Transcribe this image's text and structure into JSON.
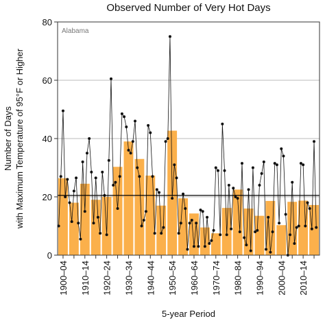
{
  "chart_data": {
    "type": "bar_line",
    "title": "Observed Number of Very Hot Days",
    "y_label": [
      "Number of Days",
      "with Maximum Temperature of 95°F or Higher"
    ],
    "x_label": "5-year Period",
    "annotation": "Alabama",
    "categories": [
      "1900–04",
      null,
      "1910–14",
      null,
      "1920–24",
      null,
      "1930–34",
      null,
      "1940–44",
      null,
      "1950–54",
      null,
      "1960–64",
      null,
      "1970–74",
      null,
      "1980–84",
      null,
      "1990–94",
      null,
      "2000–04",
      null,
      "2010–14",
      null
    ],
    "period_start": [
      1900,
      1905,
      1910,
      1915,
      1920,
      1925,
      1930,
      1935,
      1940,
      1945,
      1950,
      1955,
      1960,
      1965,
      1970,
      1975,
      1980,
      1985,
      1990,
      1995,
      2000,
      2005,
      2010,
      2015
    ],
    "values": [
      26.4,
      18,
      24.5,
      19,
      20,
      30.3,
      39,
      33,
      27.3,
      17,
      42.7,
      19.5,
      14.3,
      9.5,
      7.5,
      16.2,
      22.5,
      16,
      13.5,
      18.6,
      10.3,
      18.3,
      18.7,
      17.2
    ],
    "color": "#fbb04b",
    "annual": {
      "x": [
        1900,
        1901,
        1902,
        1903,
        1904,
        1905,
        1906,
        1907,
        1908,
        1909,
        1910,
        1911,
        1912,
        1913,
        1914,
        1915,
        1916,
        1917,
        1918,
        1919,
        1920,
        1921,
        1922,
        1923,
        1924,
        1925,
        1926,
        1927,
        1928,
        1929,
        1930,
        1931,
        1932,
        1933,
        1934,
        1935,
        1936,
        1937,
        1938,
        1939,
        1940,
        1941,
        1942,
        1943,
        1944,
        1945,
        1946,
        1947,
        1948,
        1949,
        1950,
        1951,
        1952,
        1953,
        1954,
        1955,
        1956,
        1957,
        1958,
        1959,
        1960,
        1961,
        1962,
        1963,
        1964,
        1965,
        1966,
        1967,
        1968,
        1969,
        1970,
        1971,
        1972,
        1973,
        1974,
        1975,
        1976,
        1977,
        1978,
        1979,
        1980,
        1981,
        1982,
        1983,
        1984,
        1985,
        1986,
        1987,
        1988,
        1989,
        1990,
        1991,
        1992,
        1993,
        1994,
        1995,
        1996,
        1997,
        1998,
        1999,
        2000,
        2001,
        2002,
        2003,
        2004,
        2005,
        2006,
        2007,
        2008,
        2009,
        2010,
        2011,
        2012,
        2013,
        2014,
        2015,
        2016,
        2017,
        2018
      ],
      "values": [
        10,
        27,
        49.5,
        20,
        26,
        18,
        11.5,
        22,
        26.5,
        11,
        5.5,
        32,
        15,
        35,
        40,
        28.5,
        11,
        26.5,
        13,
        7.5,
        28.5,
        20.5,
        7,
        32.5,
        60.5,
        24,
        25,
        16,
        27,
        48.5,
        47.5,
        44,
        36,
        35,
        39,
        46,
        30,
        27,
        10,
        12,
        15,
        44.5,
        42,
        27,
        7.5,
        22.5,
        21.5,
        7.5,
        9.5,
        39,
        40,
        75,
        19.5,
        31,
        26.5,
        7.5,
        11,
        21,
        16,
        2,
        11,
        12,
        3,
        11,
        3,
        15.5,
        15,
        3,
        13,
        4,
        5,
        8.5,
        30,
        29,
        7,
        45,
        29,
        7,
        24,
        9,
        23,
        20,
        19.5,
        8,
        31.5,
        6,
        3.5,
        22.5,
        1.5,
        30,
        8,
        8.5,
        24,
        28,
        32,
        2,
        13,
        1,
        8,
        31.5,
        31,
        11,
        36.5,
        34,
        14,
        0,
        7,
        25,
        4,
        9.5,
        10,
        31.5,
        31,
        10,
        18,
        16,
        9,
        39,
        9.5
      ],
      "color": "#111111"
    },
    "reference_line": 20.5,
    "xlim": [
      1900,
      2020
    ],
    "ylim": [
      0,
      80
    ],
    "yticks": [
      0,
      20,
      40,
      60,
      80
    ],
    "grid": true
  }
}
